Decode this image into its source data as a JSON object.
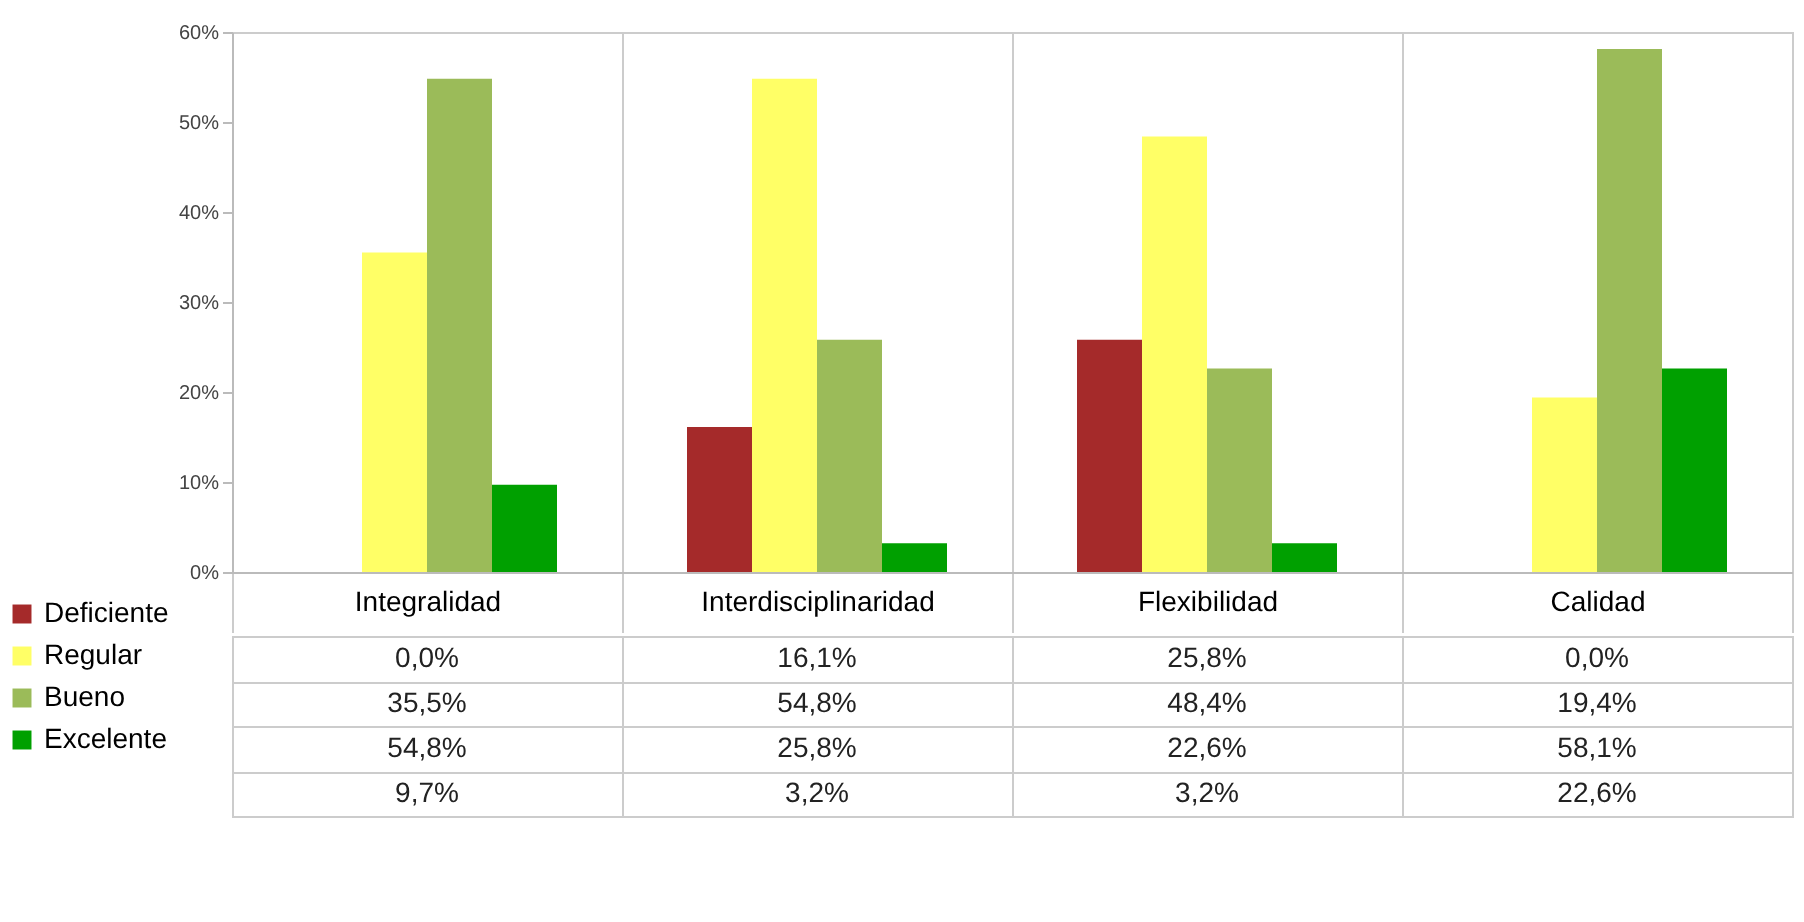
{
  "chart_data": {
    "type": "bar",
    "categories": [
      "Integralidad",
      "Interdisciplinaridad",
      "Flexibilidad",
      "Calidad"
    ],
    "series": [
      {
        "name": "Deficiente",
        "color": "#a52a2a",
        "values": [
          0.0,
          16.1,
          25.8,
          0.0
        ],
        "value_labels": [
          "0,0%",
          "16,1%",
          "25,8%",
          "0,0%"
        ]
      },
      {
        "name": "Regular",
        "color": "#ffff66",
        "values": [
          35.5,
          54.8,
          48.4,
          19.4
        ],
        "value_labels": [
          "35,5%",
          "54,8%",
          "48,4%",
          "19,4%"
        ]
      },
      {
        "name": "Bueno",
        "color": "#9bbb59",
        "values": [
          54.8,
          25.8,
          22.6,
          58.1
        ],
        "value_labels": [
          "54,8%",
          "25,8%",
          "22,6%",
          "58,1%"
        ]
      },
      {
        "name": "Excelente",
        "color": "#00a000",
        "values": [
          9.7,
          3.2,
          3.2,
          22.6
        ],
        "value_labels": [
          "9,7%",
          "3,2%",
          "3,2%",
          "22,6%"
        ]
      }
    ],
    "ylim": [
      0,
      60
    ],
    "yticks": [
      {
        "value": 0,
        "label": "0%"
      },
      {
        "value": 10,
        "label": "10%"
      },
      {
        "value": 20,
        "label": "20%"
      },
      {
        "value": 30,
        "label": "30%"
      },
      {
        "value": 40,
        "label": "40%"
      },
      {
        "value": 50,
        "label": "50%"
      },
      {
        "value": 60,
        "label": "60%"
      }
    ],
    "grid": false,
    "legend": "bottom left"
  }
}
